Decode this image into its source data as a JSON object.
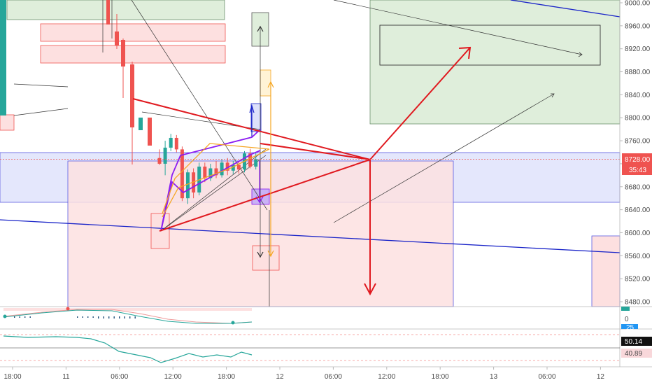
{
  "chart_data": {
    "type": "candlestick",
    "price_axis": {
      "ticks": [
        "9000.00",
        "8960.00",
        "8920.00",
        "8880.00",
        "8840.00",
        "8800.00",
        "8760.00",
        "8720.00",
        "8680.00",
        "8640.00",
        "8600.00",
        "8560.00",
        "8520.00",
        "8480.00"
      ],
      "range": [
        8465,
        9010
      ]
    },
    "time_axis": {
      "ticks": [
        "18:00",
        "11",
        "06:00",
        "12:00",
        "18:00",
        "12",
        "06:00",
        "12:00",
        "18:00",
        "13",
        "06:00",
        "12"
      ]
    },
    "current_price": {
      "label": "8728.00",
      "countdown": "35:43",
      "value": 8728
    },
    "candles": [
      {
        "o": 8730,
        "h": 8745,
        "l": 8718,
        "c": 8720
      },
      {
        "o": 8720,
        "h": 8760,
        "l": 8700,
        "c": 8748
      },
      {
        "o": 8748,
        "h": 8772,
        "l": 8742,
        "c": 8765
      },
      {
        "o": 8765,
        "h": 8770,
        "l": 8740,
        "c": 8745
      },
      {
        "o": 8745,
        "h": 8750,
        "l": 8655,
        "c": 8660
      },
      {
        "o": 8660,
        "h": 8710,
        "l": 8650,
        "c": 8705
      },
      {
        "o": 8705,
        "h": 8712,
        "l": 8660,
        "c": 8670
      },
      {
        "o": 8670,
        "h": 8722,
        "l": 8665,
        "c": 8715
      },
      {
        "o": 8715,
        "h": 8722,
        "l": 8688,
        "c": 8695
      },
      {
        "o": 8695,
        "h": 8720,
        "l": 8690,
        "c": 8712
      },
      {
        "o": 8712,
        "h": 8725,
        "l": 8695,
        "c": 8700
      },
      {
        "o": 8700,
        "h": 8728,
        "l": 8696,
        "c": 8722
      },
      {
        "o": 8722,
        "h": 8730,
        "l": 8700,
        "c": 8708
      },
      {
        "o": 8708,
        "h": 8725,
        "l": 8702,
        "c": 8718
      },
      {
        "o": 8718,
        "h": 8724,
        "l": 8703,
        "c": 8710
      },
      {
        "o": 8710,
        "h": 8742,
        "l": 8705,
        "c": 8738
      },
      {
        "o": 8738,
        "h": 8746,
        "l": 8712,
        "c": 8715
      },
      {
        "o": 8715,
        "h": 8740,
        "l": 8710,
        "c": 8728
      }
    ],
    "oscillator_labels": {
      "macd_value": "0",
      "macd_tag": "25",
      "rsi_value": "50.14",
      "rsi_tag": "40.89"
    }
  },
  "colors": {
    "up": "#26a69a",
    "down": "#ef5350",
    "red_line": "#e0191f",
    "blue_line": "#1a24c8",
    "purple": "#8b1cf2",
    "orange": "#f5a623",
    "green_box": "#dfeedb",
    "blue_zone": "#dde1fb",
    "red_zone": "#fde0e0"
  }
}
